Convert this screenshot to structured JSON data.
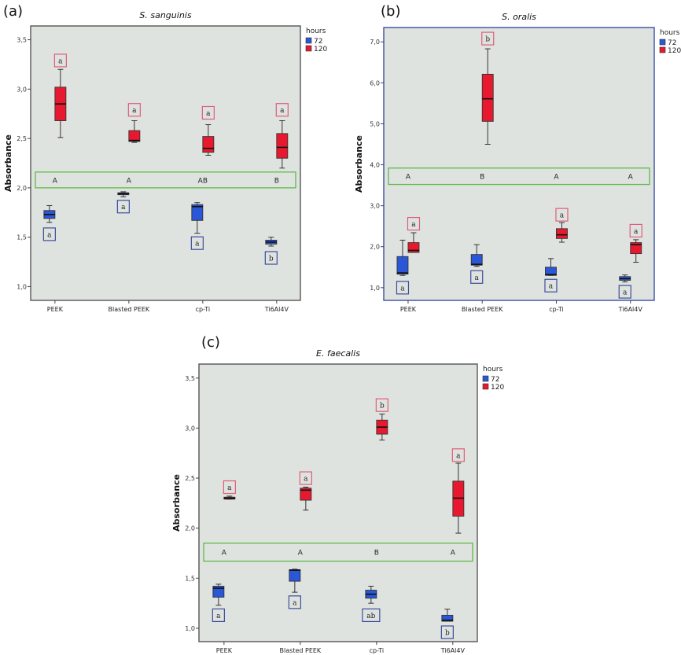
{
  "colors": {
    "h72": "#2a56d8",
    "h120": "#e8192e",
    "plot_bg": "#dfe3e0",
    "band": "#5dbb46",
    "label_red": "#df5d78",
    "label_blue": "#3d4c9c",
    "frame": "#555555",
    "frame_b": "#3a4fa0"
  },
  "legend": {
    "title": "hours",
    "items": [
      "72",
      "120"
    ]
  },
  "chart_data": [
    {
      "type": "box",
      "panel_label": "(a)",
      "title": "S. sanguinis",
      "ylabel": "Absorbance",
      "ylim": [
        0.86,
        3.64
      ],
      "yticks": [
        1.0,
        1.5,
        2.0,
        2.5,
        3.0,
        3.5
      ],
      "ytick_labels": [
        "1,0",
        "1,5",
        "2,0",
        "2,5",
        "3,0",
        "3,5"
      ],
      "categories": [
        "PEEK",
        "Blasted PEEK",
        "cp-Ti",
        "Ti6Al4V"
      ],
      "group_band": {
        "range": [
          2.0,
          2.16
        ],
        "letters": [
          "A",
          "A",
          "AB",
          "B"
        ]
      },
      "series": [
        {
          "name": "72",
          "boxes": [
            {
              "min": 1.65,
              "q1": 1.69,
              "median": 1.73,
              "q3": 1.77,
              "max": 1.82,
              "letter": "a",
              "letter_y": 1.53
            },
            {
              "min": 1.91,
              "q1": 1.93,
              "median": 1.94,
              "q3": 1.95,
              "max": 1.96,
              "letter": "a",
              "letter_y": 1.81
            },
            {
              "min": 1.54,
              "q1": 1.67,
              "median": 1.81,
              "q3": 1.83,
              "max": 1.85,
              "letter": "a",
              "letter_y": 1.44
            },
            {
              "min": 1.41,
              "q1": 1.43,
              "median": 1.45,
              "q3": 1.47,
              "max": 1.5,
              "letter": "b",
              "letter_y": 1.29
            }
          ]
        },
        {
          "name": "120",
          "boxes": [
            {
              "min": 2.51,
              "q1": 2.68,
              "median": 2.85,
              "q3": 3.02,
              "max": 3.2,
              "letter": "a",
              "letter_y": 3.29
            },
            {
              "min": 2.46,
              "q1": 2.47,
              "median": 2.48,
              "q3": 2.58,
              "max": 2.68,
              "letter": "a",
              "letter_y": 2.79
            },
            {
              "min": 2.33,
              "q1": 2.36,
              "median": 2.4,
              "q3": 2.52,
              "max": 2.64,
              "letter": "a",
              "letter_y": 2.76
            },
            {
              "min": 2.2,
              "q1": 2.3,
              "median": 2.41,
              "q3": 2.55,
              "max": 2.68,
              "letter": "a",
              "letter_y": 2.79
            }
          ]
        }
      ]
    },
    {
      "type": "box",
      "panel_label": "(b)",
      "title": "S. oralis",
      "ylabel": "Absorbance",
      "ylim": [
        0.69,
        7.35
      ],
      "yticks": [
        1.0,
        2.0,
        3.0,
        4.0,
        5.0,
        6.0,
        7.0
      ],
      "ytick_labels": [
        "1,0",
        "2,0",
        "3,0",
        "4,0",
        "5,0",
        "6,0",
        "7,0"
      ],
      "categories": [
        "PEEK",
        "Blasted PEEK",
        "cp-Ti",
        "Ti6Al4V"
      ],
      "group_band": {
        "range": [
          3.52,
          3.92
        ],
        "letters": [
          "A",
          "B",
          "A",
          "A"
        ]
      },
      "series": [
        {
          "name": "72",
          "boxes": [
            {
              "min": 1.3,
              "q1": 1.33,
              "median": 1.36,
              "q3": 1.76,
              "max": 2.16,
              "letter": "a",
              "letter_y": 1.0
            },
            {
              "min": 1.52,
              "q1": 1.55,
              "median": 1.57,
              "q3": 1.81,
              "max": 2.05,
              "letter": "a",
              "letter_y": 1.26
            },
            {
              "min": 1.3,
              "q1": 1.3,
              "median": 1.32,
              "q3": 1.5,
              "max": 1.71,
              "letter": "a",
              "letter_y": 1.05
            },
            {
              "min": 1.14,
              "q1": 1.18,
              "median": 1.22,
              "q3": 1.27,
              "max": 1.31,
              "letter": "a",
              "letter_y": 0.9
            }
          ]
        },
        {
          "name": "120",
          "boxes": [
            {
              "min": 1.86,
              "q1": 1.86,
              "median": 1.91,
              "q3": 2.1,
              "max": 2.34,
              "letter": "a",
              "letter_y": 2.56
            },
            {
              "min": 4.5,
              "q1": 5.06,
              "median": 5.61,
              "q3": 6.21,
              "max": 6.83,
              "letter": "b",
              "letter_y": 7.08
            },
            {
              "min": 2.11,
              "q1": 2.2,
              "median": 2.29,
              "q3": 2.44,
              "max": 2.59,
              "letter": "a",
              "letter_y": 2.78
            },
            {
              "min": 1.62,
              "q1": 1.83,
              "median": 2.05,
              "q3": 2.1,
              "max": 2.17,
              "letter": "a",
              "letter_y": 2.39
            }
          ]
        }
      ]
    },
    {
      "type": "box",
      "panel_label": "(c)",
      "title": "E. faecalis",
      "ylabel": "Absorbance",
      "ylim": [
        0.866,
        3.64
      ],
      "yticks": [
        1.0,
        1.5,
        2.0,
        2.5,
        3.0,
        3.5
      ],
      "ytick_labels": [
        "1,0",
        "1,5",
        "2,0",
        "2,5",
        "3,0",
        "3,5"
      ],
      "categories": [
        "PEEK",
        "Blasted PEEK",
        "cp-Ti",
        "Ti6Al4V"
      ],
      "group_band": {
        "range": [
          1.67,
          1.85
        ],
        "letters": [
          "A",
          "A",
          "B",
          "A"
        ]
      },
      "series": [
        {
          "name": "72",
          "boxes": [
            {
              "min": 1.23,
              "q1": 1.31,
              "median": 1.4,
              "q3": 1.42,
              "max": 1.44,
              "letter": "a",
              "letter_y": 1.13
            },
            {
              "min": 1.36,
              "q1": 1.47,
              "median": 1.58,
              "q3": 1.585,
              "max": 1.59,
              "letter": "a",
              "letter_y": 1.26
            },
            {
              "min": 1.25,
              "q1": 1.3,
              "median": 1.34,
              "q3": 1.38,
              "max": 1.42,
              "letter": "ab",
              "letter_y": 1.13
            },
            {
              "min": 1.07,
              "q1": 1.07,
              "median": 1.08,
              "q3": 1.13,
              "max": 1.19,
              "letter": "b",
              "letter_y": 0.96
            }
          ]
        },
        {
          "name": "120",
          "boxes": [
            {
              "min": 2.29,
              "q1": 2.29,
              "median": 2.3,
              "q3": 2.31,
              "max": 2.32,
              "letter": "a",
              "letter_y": 2.41
            },
            {
              "min": 2.18,
              "q1": 2.28,
              "median": 2.38,
              "q3": 2.4,
              "max": 2.41,
              "letter": "a",
              "letter_y": 2.5
            },
            {
              "min": 2.88,
              "q1": 2.94,
              "median": 3.01,
              "q3": 3.08,
              "max": 3.14,
              "letter": "b",
              "letter_y": 3.23
            },
            {
              "min": 1.95,
              "q1": 2.12,
              "median": 2.3,
              "q3": 2.47,
              "max": 2.65,
              "letter": "a",
              "letter_y": 2.73
            }
          ]
        }
      ]
    }
  ]
}
